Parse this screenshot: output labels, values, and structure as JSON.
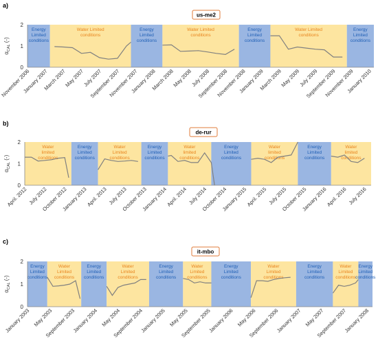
{
  "colors": {
    "energy": "#9ab6e2",
    "water": "#fde5a0",
    "energy_text": "#1f5fb5",
    "water_text": "#e8831c",
    "line": "#808080",
    "title_border": "#e07b39"
  },
  "chart_data": [
    {
      "type": "line",
      "panel": "a)",
      "title": "us-me2",
      "ylabel": "α_CAL (-)",
      "ylim": [
        0,
        2
      ],
      "yticks": [
        0,
        1,
        2
      ],
      "xrange": [
        0,
        38.5
      ],
      "x_tick_labels": [
        "November 2006",
        "January 2007",
        "March 2007",
        "May 2007",
        "July 2007",
        "September 2007",
        "November 2007",
        "January 2008",
        "March 2008",
        "May 2008",
        "July 2008",
        "September 2008",
        "November 2008",
        "January 2009",
        "March 2009",
        "May 2009",
        "July 2009",
        "September 2009",
        "November 2009",
        "January 2010"
      ],
      "x_tick_pos": [
        0,
        2,
        4,
        6,
        8,
        10,
        12,
        14,
        16,
        18,
        20,
        22,
        24,
        26,
        28,
        30,
        32,
        34,
        36,
        38
      ],
      "bands": [
        {
          "type": "energy",
          "from": 0,
          "to": 2.5,
          "label": "Energy Limited conditions"
        },
        {
          "type": "water",
          "from": 2.5,
          "to": 11.5,
          "label": "Water Limited conditions"
        },
        {
          "type": "energy",
          "from": 11.5,
          "to": 15,
          "label": "Energy Limited conditions"
        },
        {
          "type": "water",
          "from": 15,
          "to": 23.5,
          "label": "Water Limited conditions"
        },
        {
          "type": "energy",
          "from": 23.5,
          "to": 27,
          "label": "Energy Limited conditions"
        },
        {
          "type": "water",
          "from": 27,
          "to": 35.5,
          "label": "Water Limited conditions"
        },
        {
          "type": "energy",
          "from": 35.5,
          "to": 38.5,
          "label": "Energy Limited conditions"
        }
      ],
      "series": [
        {
          "segments": [
            [
              [
                3,
                0.97
              ],
              [
                4,
                0.95
              ],
              [
                5,
                0.92
              ],
              [
                6,
                0.65
              ],
              [
                7,
                0.7
              ],
              [
                8,
                0.45
              ],
              [
                9,
                0.38
              ],
              [
                10,
                0.42
              ],
              [
                11,
                1.0
              ],
              [
                11.5,
                1.18
              ]
            ],
            [
              [
                15,
                1.04
              ],
              [
                16,
                1.05
              ],
              [
                17,
                0.75
              ],
              [
                18,
                0.76
              ],
              [
                19,
                0.78
              ],
              [
                20,
                0.72
              ],
              [
                21,
                0.65
              ],
              [
                22,
                0.6
              ],
              [
                23,
                0.85
              ]
            ],
            [
              [
                27,
                1.48
              ],
              [
                28,
                1.48
              ],
              [
                29,
                0.85
              ],
              [
                30,
                0.95
              ],
              [
                31,
                0.9
              ],
              [
                32,
                0.85
              ],
              [
                33,
                0.82
              ],
              [
                34,
                0.48
              ],
              [
                35,
                0.48
              ]
            ]
          ]
        }
      ]
    },
    {
      "type": "line",
      "panel": "b)",
      "title": "de-rur",
      "ylabel": "α_CAL (-)",
      "ylim": [
        0,
        2
      ],
      "yticks": [
        0,
        1,
        2
      ],
      "xrange": [
        0,
        52
      ],
      "x_tick_labels": [
        "April. 2012",
        "July 2012",
        "October 2012",
        "January 2013",
        "April. 2013",
        "July 2013",
        "October 2013",
        "January 2014",
        "April. 2014",
        "July 2014",
        "October 2014",
        "January 2015",
        "April. 2015",
        "July 2015",
        "October 2015",
        "January 2016",
        "April. 2016",
        "July 2016"
      ],
      "x_tick_pos": [
        0,
        3,
        6,
        9,
        12,
        15,
        18,
        21,
        24,
        27,
        30,
        33,
        36,
        39,
        42,
        45,
        48,
        51
      ],
      "bands": [
        {
          "type": "water",
          "from": 0,
          "to": 7,
          "label": "Water limited conditions"
        },
        {
          "type": "energy",
          "from": 7,
          "to": 11,
          "label": "Energy Limited conditions"
        },
        {
          "type": "water",
          "from": 11,
          "to": 17.5,
          "label": "Water Limited conditions"
        },
        {
          "type": "energy",
          "from": 17.5,
          "to": 21.5,
          "label": "Energy Limited conditions"
        },
        {
          "type": "water",
          "from": 21.5,
          "to": 28,
          "label": "Water limited conditions"
        },
        {
          "type": "energy",
          "from": 28,
          "to": 34,
          "label": "Energy Limited conditions"
        },
        {
          "type": "water",
          "from": 34,
          "to": 41,
          "label": "Water limited conditions"
        },
        {
          "type": "energy",
          "from": 41,
          "to": 46,
          "label": "Energy Limited conditions"
        },
        {
          "type": "water",
          "from": 46,
          "to": 52,
          "label": "Water limited conditions"
        }
      ],
      "series": [
        {
          "segments": [
            [
              [
                0,
                1.3
              ],
              [
                1,
                1.3
              ],
              [
                2,
                1.12
              ],
              [
                3,
                1.15
              ],
              [
                4,
                1.18
              ],
              [
                5,
                1.25
              ],
              [
                6,
                1.28
              ],
              [
                6.6,
                0.35
              ]
            ],
            [
              [
                11,
                0.72
              ],
              [
                12,
                1.22
              ],
              [
                13,
                1.15
              ],
              [
                14,
                1.1
              ],
              [
                15,
                1.12
              ],
              [
                16,
                1.15
              ],
              [
                17,
                1.1
              ]
            ],
            [
              [
                21.5,
                1.35
              ],
              [
                22,
                1.38
              ],
              [
                23,
                1.1
              ],
              [
                24,
                1.15
              ],
              [
                25,
                1.05
              ],
              [
                26,
                1.05
              ],
              [
                27,
                1.5
              ],
              [
                28,
                1.05
              ],
              [
                28.5,
                0.0
              ]
            ],
            [
              [
                34,
                1.2
              ],
              [
                35,
                1.25
              ],
              [
                36,
                1.2
              ],
              [
                37,
                1.05
              ],
              [
                38,
                1.3
              ],
              [
                39,
                1.35
              ],
              [
                40,
                1.4
              ],
              [
                41,
                2.0
              ]
            ],
            [
              [
                46,
                1.35
              ],
              [
                47,
                1.3
              ],
              [
                48,
                1.4
              ],
              [
                49,
                1.1
              ],
              [
                50,
                1.05
              ],
              [
                51,
                1.25
              ]
            ]
          ]
        }
      ]
    },
    {
      "type": "line",
      "panel": "c)",
      "title": "it-mbo",
      "ylabel": "α_CAL (-)",
      "ylim": [
        0,
        2
      ],
      "yticks": [
        0,
        1,
        2
      ],
      "xrange": [
        0,
        61
      ],
      "x_tick_labels": [
        "January 2003",
        "May 2003",
        "September 2003",
        "January 2004",
        "May 2004",
        "September 2004",
        "January 2005",
        "May 2005",
        "September 2005",
        "January 2006",
        "May 2006",
        "September 2006",
        "January 2007",
        "May 2007",
        "September 2007",
        "January 2008"
      ],
      "x_tick_pos": [
        0,
        4,
        8,
        12,
        16,
        20,
        24,
        28,
        32,
        36,
        40,
        44,
        48,
        52,
        56,
        60
      ],
      "bands": [
        {
          "type": "energy",
          "from": 0,
          "to": 3.5,
          "label": "Energy Limited conditions"
        },
        {
          "type": "water",
          "from": 3.5,
          "to": 9.5,
          "label": "Water Limited conditions"
        },
        {
          "type": "energy",
          "from": 9.5,
          "to": 14,
          "label": "Energy Limited conditions"
        },
        {
          "type": "water",
          "from": 14,
          "to": 21.5,
          "label": "Water Limited conditions"
        },
        {
          "type": "energy",
          "from": 21.5,
          "to": 27.5,
          "label": "Energy Limited conditions"
        },
        {
          "type": "water",
          "from": 27.5,
          "to": 32.5,
          "label": "Water Limited conditions"
        },
        {
          "type": "energy",
          "from": 32.5,
          "to": 39.5,
          "label": "Energy Limited conditions"
        },
        {
          "type": "water",
          "from": 39.5,
          "to": 47.5,
          "label": "Water Limited conditions"
        },
        {
          "type": "energy",
          "from": 47.5,
          "to": 54,
          "label": "Energy Limited conditions"
        },
        {
          "type": "water",
          "from": 54,
          "to": 58.5,
          "label": "Water Limited conditions"
        },
        {
          "type": "energy",
          "from": 58.5,
          "to": 61,
          "label": "Energy Limited conditions"
        }
      ],
      "series": [
        {
          "segments": [
            [
              [
                3.5,
                1.3
              ],
              [
                4.5,
                0.9
              ],
              [
                5.5,
                0.92
              ],
              [
                6.5,
                0.95
              ],
              [
                7.5,
                1.0
              ],
              [
                8.5,
                1.15
              ],
              [
                9.3,
                0.35
              ]
            ],
            [
              [
                14,
                0.9
              ],
              [
                15,
                0.5
              ],
              [
                16,
                0.85
              ],
              [
                17,
                0.95
              ],
              [
                18,
                1.0
              ],
              [
                19,
                1.05
              ],
              [
                20,
                1.2
              ],
              [
                21,
                1.2
              ]
            ],
            [
              [
                27.5,
                1.25
              ],
              [
                28.5,
                1.2
              ],
              [
                29.5,
                1.05
              ],
              [
                30.5,
                1.1
              ],
              [
                31.5,
                1.05
              ],
              [
                32.5,
                1.05
              ]
            ],
            [
              [
                39.5,
                0.4
              ],
              [
                40.5,
                1.15
              ],
              [
                41.5,
                1.15
              ],
              [
                42.5,
                1.12
              ],
              [
                43.5,
                1.2
              ],
              [
                44.5,
                1.25
              ],
              [
                45.5,
                1.28
              ],
              [
                46.5,
                1.3
              ]
            ],
            [
              [
                54,
                0.6
              ],
              [
                55,
                0.95
              ],
              [
                56,
                0.9
              ],
              [
                57,
                0.95
              ],
              [
                58,
                1.05
              ],
              [
                58.5,
                1.2
              ]
            ]
          ]
        }
      ]
    }
  ]
}
